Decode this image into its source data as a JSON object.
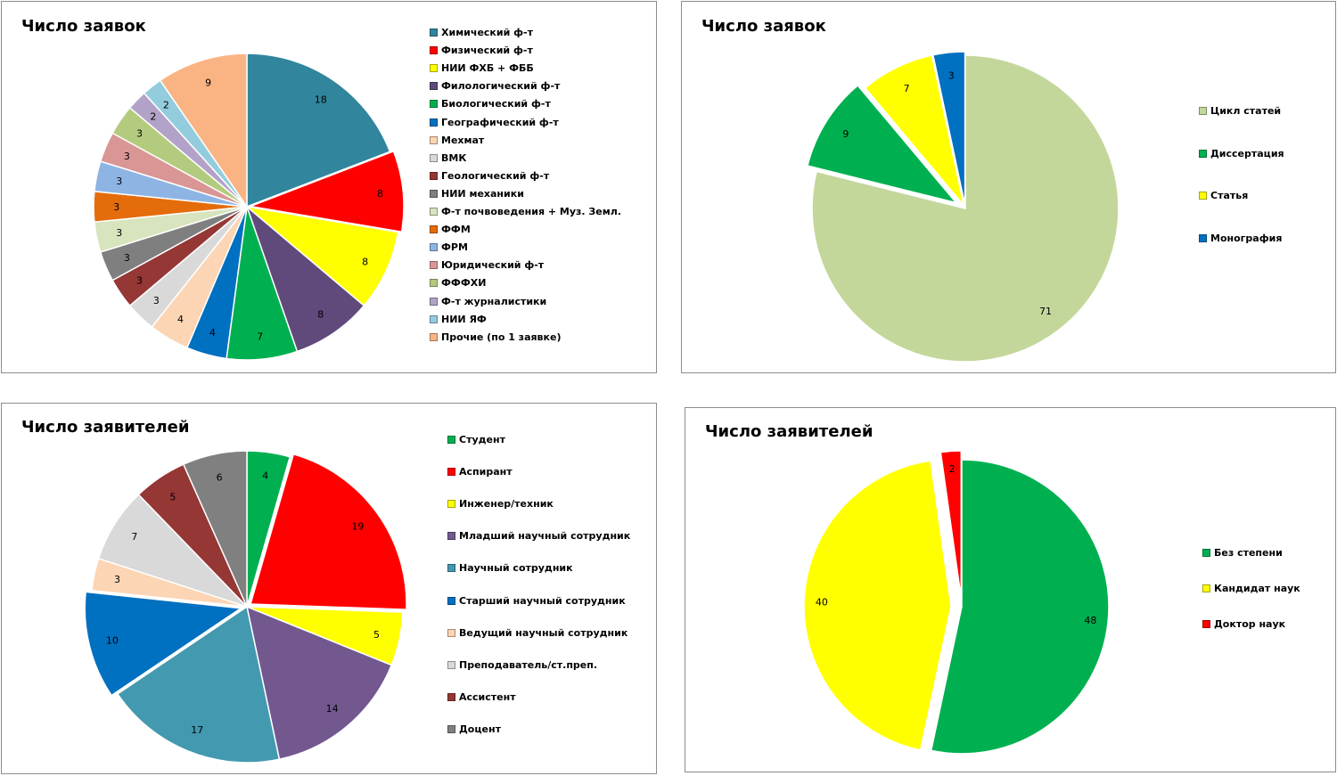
{
  "chart_data": [
    {
      "type": "pie",
      "title": "Число заявок",
      "categories": [
        "Химический  ф-т",
        "Физический  ф-т",
        "НИИ ФХБ + ФББ",
        "Филологический  ф-т",
        "Биологический  ф-т",
        "Географический  ф-т",
        "Мехмат",
        "ВМК",
        "Геологический  ф-т",
        "НИИ механики",
        "Ф-т почвоведения  + Муз. Земл.",
        "ФФМ",
        "ФРМ",
        "Юридический  ф-т",
        "ФФФХИ",
        "Ф-т журналистики",
        "НИИ ЯФ",
        "Прочие (по 1 заявке)"
      ],
      "values": [
        18,
        8,
        8,
        8,
        7,
        4,
        4,
        3,
        3,
        3,
        3,
        3,
        3,
        3,
        3,
        2,
        2,
        9
      ],
      "colors": [
        "#31859c",
        "#ff0000",
        "#ffff00",
        "#604a7b",
        "#00b050",
        "#0070c0",
        "#fcd5b4",
        "#d9d9d9",
        "#953735",
        "#7f7f7f",
        "#d7e4bd",
        "#e46c0a",
        "#8eb4e3",
        "#d99694",
        "#b3cb7f",
        "#b3a2c7",
        "#93cddd",
        "#fab484"
      ],
      "legend": "right"
    },
    {
      "type": "pie",
      "title": "Число заявок",
      "categories": [
        "Цикл статей",
        "Диссертация",
        "Статья",
        "Монография"
      ],
      "values": [
        71,
        9,
        7,
        3
      ],
      "colors": [
        "#c4d79b",
        "#00b050",
        "#ffff00",
        "#0070c0"
      ],
      "legend": "right"
    },
    {
      "type": "pie",
      "title": "Число заявителей",
      "categories": [
        "Студент",
        "Аспирант",
        "Инженер/техник",
        "Младший научный  сотрудник",
        "Научный  сотрудник",
        "Старший научный  сотрудник",
        "Ведущий научный  сотрудник",
        "Преподаватель/ст.преп.",
        "Ассистент",
        "Доцент"
      ],
      "values": [
        4,
        19,
        5,
        14,
        17,
        10,
        3,
        7,
        5,
        6
      ],
      "colors": [
        "#00b050",
        "#ff0000",
        "#ffff00",
        "#72588f",
        "#4399af",
        "#0070c0",
        "#fcd5b4",
        "#d9d9d9",
        "#953735",
        "#808080"
      ],
      "legend": "right"
    },
    {
      "type": "pie",
      "title": "Число заявителей",
      "categories": [
        "Без степени",
        "Кандидат наук",
        "Доктор наук"
      ],
      "values": [
        48,
        40,
        2
      ],
      "colors": [
        "#00b050",
        "#ffff00",
        "#ff0000"
      ],
      "legend": "right"
    }
  ]
}
